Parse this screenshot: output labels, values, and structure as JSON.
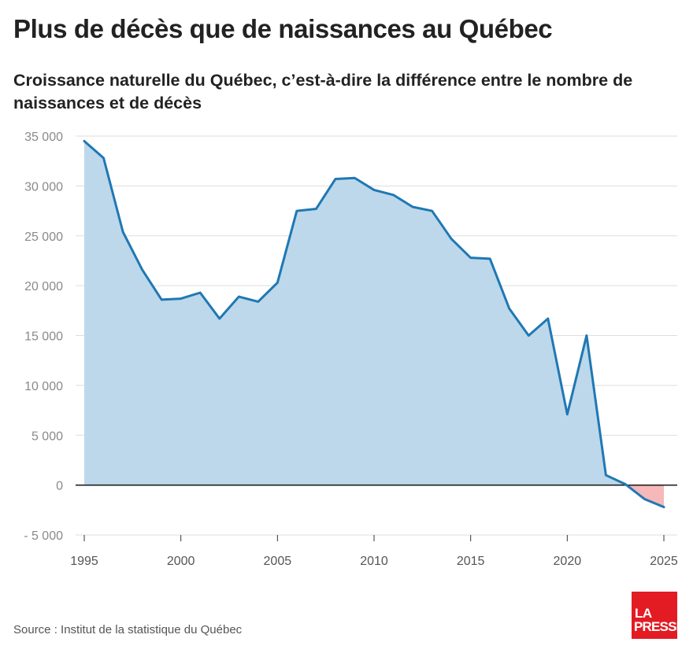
{
  "header": {
    "title": "Plus de décès que de naissances au Québec",
    "subtitle": "Croissance naturelle du Québec, c’est-à-dire la différence entre le nombre de naissances et de décès"
  },
  "footer": {
    "source": "Source : Institut de la statistique du Québec",
    "logo_line1": "LA",
    "logo_line2": "PRESSE"
  },
  "colors": {
    "line": "#1f78b4",
    "area_positive": "#bdd8ea",
    "area_negative": "#f6b8b8",
    "grid": "#dddddd",
    "zero_line": "#111111",
    "brand": "#e31b23"
  },
  "chart_data": {
    "type": "area",
    "title": "",
    "xlabel": "",
    "ylabel": "",
    "x": [
      1995,
      1996,
      1997,
      1998,
      1999,
      2000,
      2001,
      2002,
      2003,
      2004,
      2005,
      2006,
      2007,
      2008,
      2009,
      2010,
      2011,
      2012,
      2013,
      2014,
      2015,
      2016,
      2017,
      2018,
      2019,
      2020,
      2021,
      2022,
      2023,
      2024,
      2025
    ],
    "series": [
      {
        "values": [
          34500,
          32800,
          25400,
          21600,
          18600,
          18700,
          19300,
          16700,
          18900,
          18400,
          20300,
          27500,
          27700,
          30700,
          30800,
          29600,
          29100,
          27900,
          27500,
          24700,
          22800,
          22700,
          17700,
          15000,
          16700,
          7100,
          15000,
          1000,
          100,
          -1400,
          -2200
        ]
      }
    ],
    "ylim": [
      -5000,
      35000
    ],
    "xlim": [
      1995,
      2025
    ],
    "y_ticks": [
      -5000,
      0,
      5000,
      10000,
      15000,
      20000,
      25000,
      30000,
      35000
    ],
    "y_tick_labels": [
      "- 5 000",
      "0",
      "5 000",
      "10 000",
      "15 000",
      "20 000",
      "25 000",
      "30 000",
      "35 000"
    ],
    "x_ticks": [
      1995,
      2000,
      2005,
      2010,
      2015,
      2020,
      2025
    ],
    "x_tick_labels": [
      "1995",
      "2000",
      "2005",
      "2010",
      "2015",
      "2020",
      "2025"
    ],
    "grid": true,
    "legend": "none"
  }
}
